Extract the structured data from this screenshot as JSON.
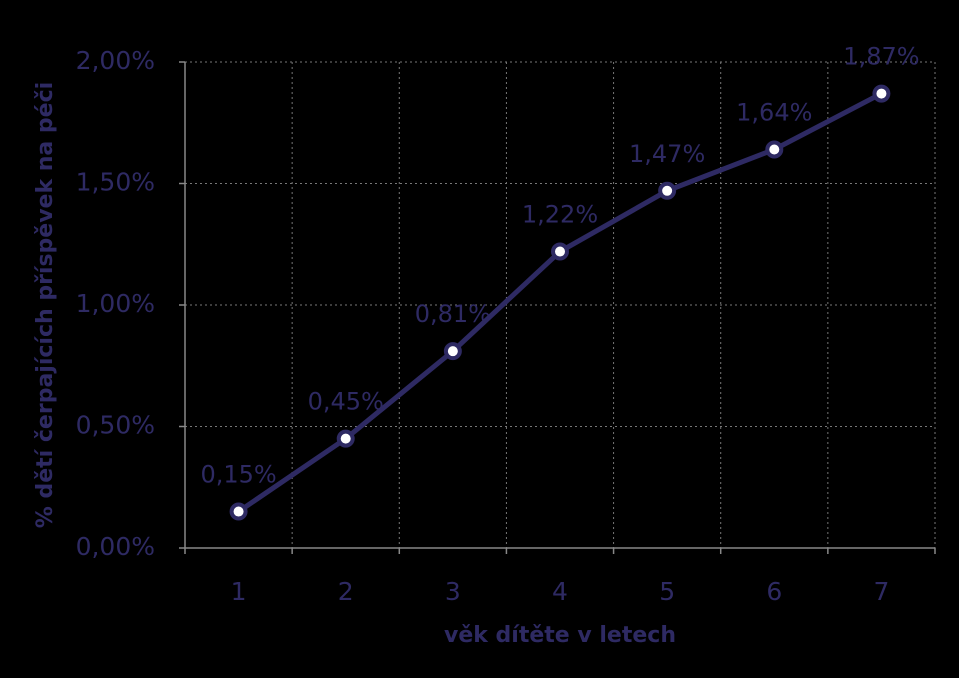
{
  "chart_data": {
    "type": "line",
    "x_label": "věk dítěte v letech",
    "y_label": "% dětí čerpajících  příspěvek na péči",
    "categories": [
      "1",
      "2",
      "3",
      "4",
      "5",
      "6",
      "7"
    ],
    "series": [
      {
        "name": "% dětí čerpajících příspěvek na péči",
        "color": "#2e2a63",
        "values": [
          0.15,
          0.45,
          0.81,
          1.22,
          1.47,
          1.64,
          1.87
        ],
        "value_labels": [
          "0,15%",
          "0,45%",
          "0,81%",
          "1,22%",
          "1,47%",
          "1,64%",
          "1,87%"
        ]
      }
    ],
    "ylim": [
      0,
      2
    ],
    "yticks": [
      {
        "value": 0,
        "label": "0,00%"
      },
      {
        "value": 0.5,
        "label": "0,50%"
      },
      {
        "value": 1,
        "label": "1,00%"
      },
      {
        "value": 1.5,
        "label": "1,50%"
      },
      {
        "value": 2,
        "label": "2,00%"
      }
    ],
    "grid": true
  }
}
